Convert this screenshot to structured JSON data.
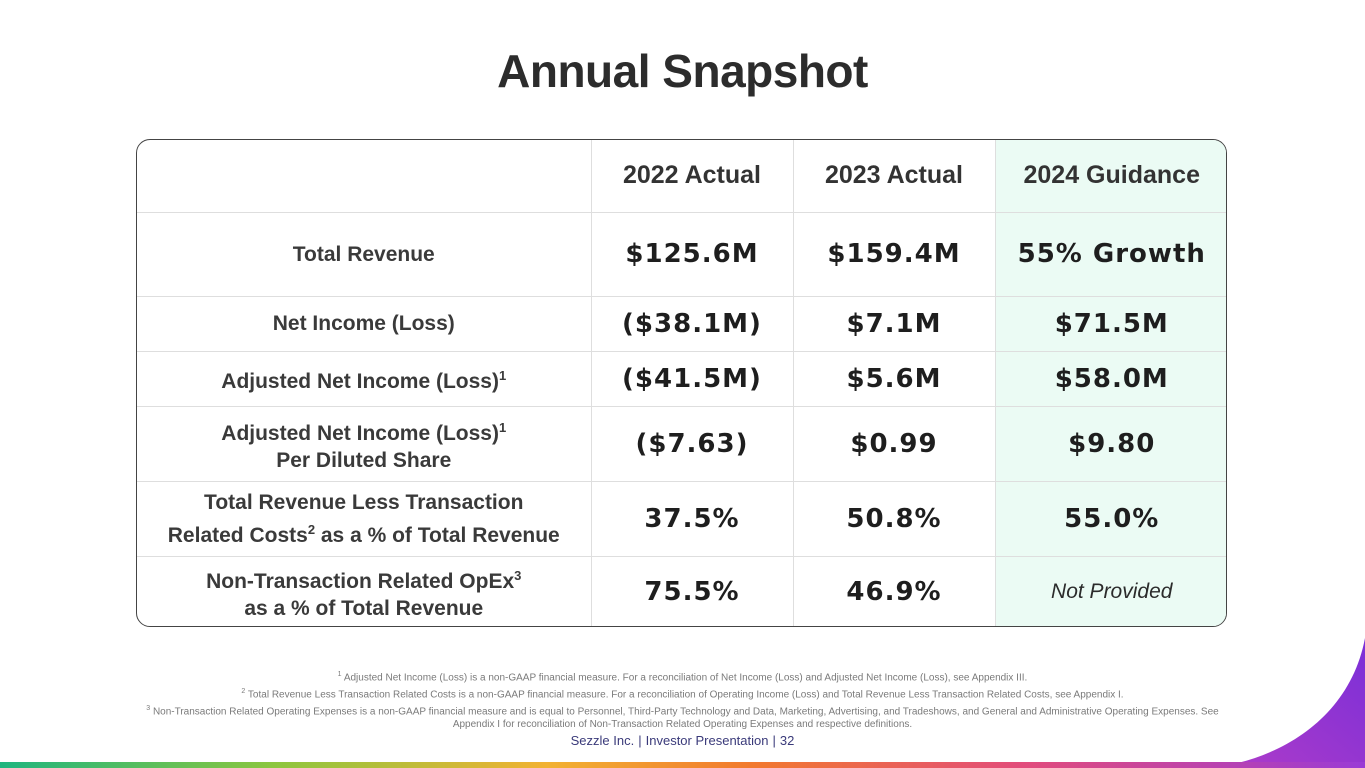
{
  "title": "Annual Snapshot",
  "table": {
    "headers": [
      "",
      "2022 Actual",
      "2023 Actual",
      "2024 Guidance"
    ],
    "rows": [
      {
        "label_line1": "Total Revenue",
        "label_sup1": "",
        "label_line2": "",
        "label_sup2": "",
        "v2022": "$125.6M",
        "v2023": "$159.4M",
        "v2024": "55% Growth"
      },
      {
        "label_line1": "Net Income (Loss)",
        "label_sup1": "",
        "label_line2": "",
        "label_sup2": "",
        "v2022": "($38.1M)",
        "v2023": "$7.1M",
        "v2024": "$71.5M"
      },
      {
        "label_line1": "Adjusted Net Income (Loss)",
        "label_sup1": "1",
        "label_line2": "",
        "label_sup2": "",
        "v2022": "($41.5M)",
        "v2023": "$5.6M",
        "v2024": "$58.0M"
      },
      {
        "label_line1": "Adjusted Net Income (Loss)",
        "label_sup1": "1",
        "label_line2": "Per Diluted Share",
        "label_sup2": "",
        "v2022": "($7.63)",
        "v2023": "$0.99",
        "v2024": "$9.80"
      },
      {
        "label_line1": "Total Revenue Less Transaction",
        "label_sup1": "",
        "label_line2a": "Related Costs",
        "label_sup2": "2",
        "label_line2b": " as a % of Total Revenue",
        "v2022": "37.5%",
        "v2023": "50.8%",
        "v2024": "55.0%"
      },
      {
        "label_line1": "Non-Transaction Related OpEx",
        "label_sup1": "3",
        "label_line2": "as a % of Total Revenue",
        "label_sup2": "",
        "v2022": "75.5%",
        "v2023": "46.9%",
        "v2024": "Not Provided"
      }
    ]
  },
  "footnotes": [
    {
      "num": "1",
      "text": "Adjusted Net Income (Loss) is a non-GAAP financial measure. For a reconciliation of Net Income (Loss) and Adjusted Net Income (Loss), see Appendix III."
    },
    {
      "num": "2",
      "text": "Total Revenue Less Transaction Related Costs is a non-GAAP financial measure. For a reconciliation of Operating Income (Loss) and Total Revenue Less Transaction Related Costs, see Appendix I."
    },
    {
      "num": "3",
      "text": "Non-Transaction Related Operating Expenses is a non-GAAP financial measure and is equal to Personnel, Third-Party Technology and Data, Marketing, Advertising, and Tradeshows, and General and Administrative Operating Expenses. See Appendix I for reconciliation of Non-Transaction Related Operating Expenses and respective definitions."
    }
  ],
  "footer": {
    "company": "Sezzle Inc.",
    "doc": "Investor Presentation",
    "page": "32"
  },
  "colors": {
    "guidance_bg": "#ebfbf4",
    "corner_purple": "#8a32d4"
  }
}
